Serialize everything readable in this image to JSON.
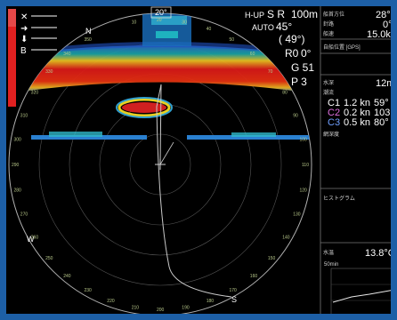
{
  "bearing_top": "20°",
  "header": {
    "mode": "H-UP",
    "sr": "S R",
    "range": "100m",
    "auto": "AUTO",
    "tilt": "45°",
    "tilt_paren": "( 49°)",
    "ro": "R0",
    "ro_val": "0°",
    "gain": "G 51",
    "p": "P 3"
  },
  "left_panel": {
    "label_b": "B"
  },
  "compass": {
    "n": "N",
    "w": "W",
    "s": "S"
  },
  "ring_marks": [
    "10",
    "20",
    "30",
    "40",
    "50",
    "60",
    "70",
    "80",
    "90",
    "100",
    "110",
    "120",
    "130",
    "140",
    "150",
    "160",
    "170",
    "180",
    "190",
    "200",
    "210",
    "220",
    "230",
    "240",
    "250",
    "260",
    "270",
    "280",
    "290",
    "300",
    "310",
    "320",
    "330",
    "340",
    "350"
  ],
  "right_panel": {
    "heading_label": "船首方位",
    "heading_value": "28°",
    "course_label": "針路",
    "course_value": "0°",
    "speed_label": "船速",
    "speed_value": "15.0kn",
    "position_label": "自船位置 [GPS]",
    "depth_label": "水深",
    "depth_value": "12m",
    "current_label": "潮流",
    "currents": [
      {
        "name": "C1",
        "speed": "1.2 kn",
        "dir": "59°",
        "color": "#ffffff"
      },
      {
        "name": "C2",
        "speed": "0.2 kn",
        "dir": "103°",
        "color": "#e070e0"
      },
      {
        "name": "C3",
        "speed": "0.5 kn",
        "dir": "80°",
        "color": "#70a0ff"
      }
    ],
    "net_label": "網深度",
    "histogram_label": "ヒストグラム",
    "temp_label": "水温",
    "temp_value": "13.8°C",
    "graph_label": "50min"
  }
}
